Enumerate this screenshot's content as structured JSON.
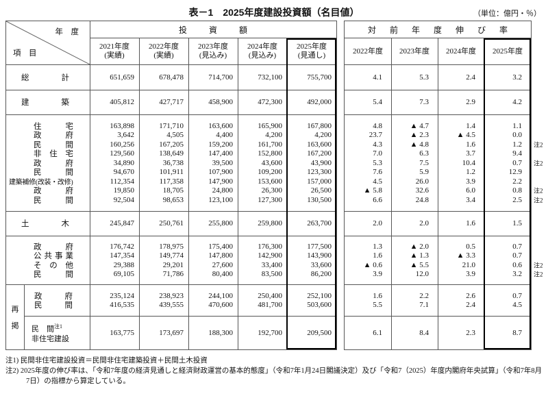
{
  "title": "表－1　2025年度建設投資額（名目値）",
  "unit_note": "（単位：億円・％）",
  "header": {
    "corner_year": "年　度",
    "corner_item": "項　目",
    "left_group": "投　資　額",
    "right_group": "対　前　年　度　伸　び　率",
    "left_columns": [
      {
        "year": "2021年度",
        "note": "(実績)"
      },
      {
        "year": "2022年度",
        "note": "(実績)"
      },
      {
        "year": "2023年度",
        "note": "(見込み)"
      },
      {
        "year": "2024年度",
        "note": "(見込み)"
      },
      {
        "year": "2025年度",
        "note": "(見通し)"
      }
    ],
    "right_columns": [
      "2022年度",
      "2023年度",
      "2024年度",
      "2025年度"
    ]
  },
  "body": {
    "groups": [
      {
        "cls": "g-single",
        "rows": [
          {
            "label": "総計",
            "lvl": 0,
            "amounts": [
              "651,659",
              "678,478",
              "714,700",
              "732,100",
              "755,700"
            ],
            "rates": [
              "4.1",
              "5.3",
              "2.4",
              "3.2"
            ],
            "note": ""
          }
        ]
      },
      {
        "cls": "g-single",
        "rows": [
          {
            "label": "建築",
            "lvl": 0,
            "amounts": [
              "405,812",
              "427,717",
              "458,900",
              "472,300",
              "492,000"
            ],
            "rates": [
              "5.4",
              "7.3",
              "2.9",
              "4.2"
            ],
            "note": ""
          }
        ]
      },
      {
        "cls": "g-block",
        "rows": [
          {
            "label": "住宅",
            "lvl": 1,
            "amounts": [
              "163,898",
              "171,710",
              "163,600",
              "165,900",
              "167,800"
            ],
            "rates": [
              "4.8",
              "▲ 4.7",
              "1.4",
              "1.1"
            ],
            "note": ""
          },
          {
            "label": "政府",
            "lvl": 1,
            "amounts": [
              "3,642",
              "4,505",
              "4,400",
              "4,200",
              "4,200"
            ],
            "rates": [
              "23.7",
              "▲ 2.3",
              "▲ 4.5",
              "0.0"
            ],
            "note": ""
          },
          {
            "label": "民間",
            "lvl": 1,
            "amounts": [
              "160,256",
              "167,205",
              "159,200",
              "161,700",
              "163,600"
            ],
            "rates": [
              "4.3",
              "▲ 4.8",
              "1.6",
              "1.2"
            ],
            "note": "注2"
          },
          {
            "label": "非住宅",
            "lvl": 1,
            "amounts": [
              "129,560",
              "138,649",
              "147,400",
              "152,800",
              "167,200"
            ],
            "rates": [
              "7.0",
              "6.3",
              "3.7",
              "9.4"
            ],
            "note": ""
          },
          {
            "label": "政府",
            "lvl": 1,
            "amounts": [
              "34,890",
              "36,738",
              "39,500",
              "43,600",
              "43,900"
            ],
            "rates": [
              "5.3",
              "7.5",
              "10.4",
              "0.7"
            ],
            "note": "注2"
          },
          {
            "label": "民間",
            "lvl": 1,
            "amounts": [
              "94,670",
              "101,911",
              "107,900",
              "109,200",
              "123,300"
            ],
            "rates": [
              "7.6",
              "5.9",
              "1.2",
              "12.9"
            ],
            "note": ""
          },
          {
            "label": "建築補修(改装・改修)",
            "lvl": "wide",
            "amounts": [
              "112,354",
              "117,358",
              "147,900",
              "153,600",
              "157,000"
            ],
            "rates": [
              "4.5",
              "26.0",
              "3.9",
              "2.2"
            ],
            "note": ""
          },
          {
            "label": "政府",
            "lvl": 1,
            "amounts": [
              "19,850",
              "18,705",
              "24,800",
              "26,300",
              "26,500"
            ],
            "rates": [
              "▲ 5.8",
              "32.6",
              "6.0",
              "0.8"
            ],
            "note": "注2"
          },
          {
            "label": "民間",
            "lvl": 1,
            "amounts": [
              "92,504",
              "98,653",
              "123,100",
              "127,300",
              "130,500"
            ],
            "rates": [
              "6.6",
              "24.8",
              "3.4",
              "2.5"
            ],
            "note": "注2"
          }
        ]
      },
      {
        "cls": "g-single",
        "rows": [
          {
            "label": "土木",
            "lvl": 0,
            "amounts": [
              "245,847",
              "250,761",
              "255,800",
              "259,800",
              "263,700"
            ],
            "rates": [
              "2.0",
              "2.0",
              "1.6",
              "1.5"
            ],
            "note": ""
          }
        ]
      },
      {
        "cls": "g-block4",
        "rows": [
          {
            "label": "政府",
            "lvl": 1,
            "amounts": [
              "176,742",
              "178,975",
              "175,400",
              "176,300",
              "177,500"
            ],
            "rates": [
              "1.3",
              "▲ 2.0",
              "0.5",
              "0.7"
            ],
            "note": ""
          },
          {
            "label": "公共事業",
            "lvl": 1,
            "amounts": [
              "147,354",
              "149,774",
              "147,800",
              "142,900",
              "143,900"
            ],
            "rates": [
              "1.6",
              "▲ 1.3",
              "▲ 3.3",
              "0.7"
            ],
            "note": ""
          },
          {
            "label": "その他",
            "lvl": 1,
            "amounts": [
              "29,388",
              "29,201",
              "27,600",
              "33,400",
              "33,600"
            ],
            "rates": [
              "▲ 0.6",
              "▲ 5.5",
              "21.0",
              "0.6"
            ],
            "note": "注2"
          },
          {
            "label": "民間",
            "lvl": 1,
            "amounts": [
              "69,105",
              "71,786",
              "80,400",
              "83,500",
              "86,200"
            ],
            "rates": [
              "3.9",
              "12.0",
              "3.9",
              "3.2"
            ],
            "note": "注2"
          }
        ]
      }
    ],
    "rekei": {
      "label_chars": [
        "再",
        "掲"
      ],
      "groups": [
        {
          "cls": "g-rekei",
          "rows": [
            {
              "label": "政府",
              "lvl": "rk",
              "amounts": [
                "235,124",
                "238,923",
                "244,100",
                "250,400",
                "252,100"
              ],
              "rates": [
                "1.6",
                "2.2",
                "2.6",
                "0.7"
              ],
              "note": ""
            },
            {
              "label": "民間",
              "lvl": "rk",
              "amounts": [
                "416,535",
                "439,555",
                "470,600",
                "481,700",
                "503,600"
              ],
              "rates": [
                "5.5",
                "7.1",
                "2.4",
                "4.5"
              ],
              "note": ""
            }
          ]
        },
        {
          "cls": "g-last",
          "rows": [
            {
              "label": "民　間",
              "sup": "注1",
              "label2": "非住宅建設",
              "lvl": "last",
              "amounts": [
                "163,775",
                "173,697",
                "188,300",
                "192,700",
                "209,500"
              ],
              "rates": [
                "6.1",
                "8.4",
                "2.3",
                "8.7"
              ],
              "note": ""
            }
          ]
        }
      ]
    }
  },
  "footnotes": [
    "注1) 民間非住宅建設投資＝民間非住宅建築投資＋民間土木投資",
    "注2) 2025年度の伸び率は、「令和7年度の経済見通しと経済財政運営の基本的態度」（令和7年1月24日閣議決定）及び「令和7（2025）年度内閣府年央試算」（令和7年8月7日）の指標から算定している。"
  ]
}
